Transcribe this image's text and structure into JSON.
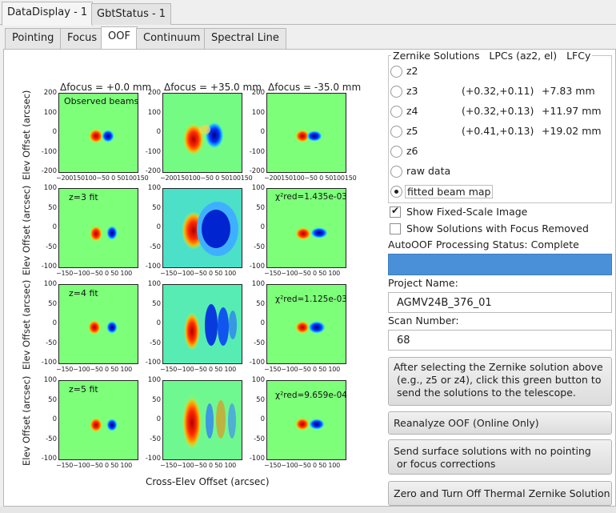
{
  "window_tabs": [
    "DataDisplay - 1",
    "GbtStatus - 1"
  ],
  "sub_tabs": [
    "Pointing",
    "Focus",
    "OOF",
    "Continuum",
    "Spectral Line"
  ],
  "plots": {
    "column_headers": [
      "Δfocus = +0.0 mm",
      "Δfocus = +35.0 mm",
      "Δfocus = -35.0 mm"
    ],
    "y_axis_label": "Elev Offset (arcsec)",
    "x_axis_label": "Cross-Elev Offset (arcsec)",
    "row1_yticks": [
      "200",
      "100",
      "0",
      "-100",
      "-200"
    ],
    "row1_xticks": "−200150100−50 0 50100150",
    "rows_yticks": [
      "100",
      "50",
      "0",
      "-50",
      "-100"
    ],
    "rows_xticks": "−150−100−50  0  50 100",
    "row_labels": [
      "Observed beams",
      "z=3 fit",
      "z=4 fit",
      "z=5 fit"
    ],
    "chi_labels": [
      "χ²red=1.435e-03",
      "χ²red=1.125e-03",
      "χ²red=9.659e-04"
    ]
  },
  "zernike": {
    "title": "Zernike Solutions",
    "col_lpcs": "LPCs (az2, el)",
    "col_lfcy": "LFCy",
    "options": [
      {
        "label": "z2",
        "lpcs": "",
        "lfcy": "",
        "selected": false
      },
      {
        "label": "z3",
        "lpcs": "(+0.32,+0.11)",
        "lfcy": "+7.83 mm",
        "selected": false
      },
      {
        "label": "z4",
        "lpcs": "(+0.32,+0.13)",
        "lfcy": "+11.97 mm",
        "selected": false
      },
      {
        "label": "z5",
        "lpcs": "(+0.41,+0.13)",
        "lfcy": "+19.02 mm",
        "selected": false
      },
      {
        "label": "z6",
        "lpcs": "",
        "lfcy": "",
        "selected": false
      },
      {
        "label": "raw data",
        "lpcs": "",
        "lfcy": "",
        "selected": false
      },
      {
        "label": "fitted beam map",
        "lpcs": "",
        "lfcy": "",
        "selected": true
      }
    ]
  },
  "options": {
    "fixed_scale": {
      "label": "Show Fixed-Scale Image",
      "checked": true
    },
    "focus_removed": {
      "label": "Show Solutions with Focus Removed",
      "checked": false
    }
  },
  "status": {
    "text": "AutoOOF Processing Status: Complete",
    "progress": 1.0
  },
  "project": {
    "label": "Project Name:",
    "value": "AGMV24B_376_01"
  },
  "scan": {
    "label": "Scan Number:",
    "value": "68"
  },
  "buttons": {
    "send_solutions": "After selecting the Zernike solution above\n (e.g., z5 or z4), click this green button to\n send the solutions to the telescope.",
    "reanalyze": "Reanalyze OOF (Online Only)",
    "send_surface": "Send surface solutions with no pointing\n or focus corrections",
    "zero_thermal": "Zero and Turn Off Thermal Zernike Solution"
  }
}
